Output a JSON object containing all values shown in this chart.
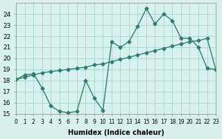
{
  "line1_x": [
    0,
    1,
    2,
    3,
    4,
    5,
    6,
    7,
    8,
    9,
    10,
    11,
    12,
    13,
    14,
    15,
    16,
    17,
    18,
    19,
    20,
    21,
    22,
    23
  ],
  "line1_y": [
    18.1,
    18.5,
    18.6,
    17.3,
    15.7,
    15.2,
    15.1,
    15.2,
    18.0,
    16.4,
    15.3,
    21.5,
    21.0,
    21.5,
    22.9,
    24.5,
    23.1,
    24.0,
    23.4,
    21.8,
    21.8,
    21.0,
    19.1,
    19.0
  ],
  "line2_x": [
    0,
    1,
    2,
    3,
    4,
    5,
    6,
    7,
    8,
    9,
    10,
    11,
    12,
    13,
    14,
    15,
    16,
    17,
    18,
    19,
    20,
    21,
    22,
    23
  ],
  "line2_y": [
    18.1,
    18.3,
    18.5,
    18.7,
    18.8,
    18.9,
    19.0,
    19.1,
    19.2,
    19.4,
    19.5,
    19.7,
    19.9,
    20.1,
    20.3,
    20.5,
    20.7,
    20.9,
    21.1,
    21.3,
    21.5,
    21.6,
    21.8,
    19.0
  ],
  "line_color": "#2E7D6E",
  "bg_color": "#D8F0EE",
  "grid_color": "#A8D8D0",
  "xlabel": "Humidex (Indice chaleur)",
  "ylim": [
    15,
    25
  ],
  "xlim": [
    0,
    23
  ],
  "yticks": [
    15,
    16,
    17,
    18,
    19,
    20,
    21,
    22,
    23,
    24
  ],
  "xticks": [
    0,
    1,
    2,
    3,
    4,
    5,
    6,
    7,
    8,
    9,
    10,
    11,
    12,
    13,
    14,
    15,
    16,
    17,
    18,
    19,
    20,
    21,
    22,
    23
  ],
  "xtick_labels": [
    "0",
    "1",
    "2",
    "3",
    "4",
    "5",
    "6",
    "7",
    "8",
    "9",
    "10",
    "11",
    "12",
    "13",
    "14",
    "15",
    "16",
    "17",
    "18",
    "19",
    "20",
    "21",
    "22",
    "23"
  ]
}
